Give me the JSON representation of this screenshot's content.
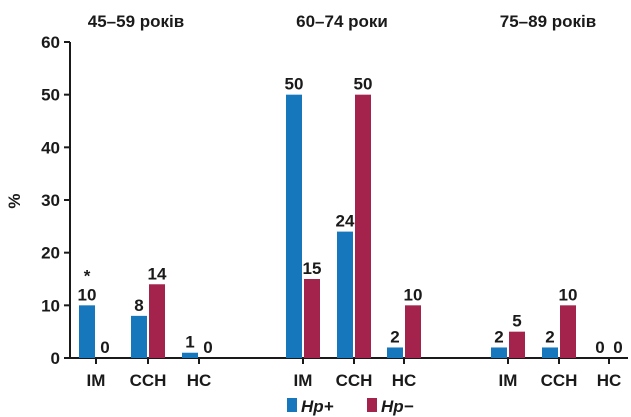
{
  "chart_data": {
    "type": "bar",
    "ylabel": "%",
    "xlabel": "",
    "ylim": [
      0,
      60
    ],
    "yticks": [
      0,
      10,
      20,
      30,
      40,
      50,
      60
    ],
    "grid": false,
    "legend_position": "bottom-center",
    "groups": [
      {
        "title": "45–59 років",
        "categories": [
          "ІМ",
          "ССН",
          "НС"
        ],
        "series": [
          {
            "values": [
              10,
              8,
              1
            ],
            "labels": [
              "10",
              "8",
              "1"
            ]
          },
          {
            "values": [
              0,
              14,
              0
            ],
            "labels": [
              "0",
              "14",
              "0"
            ]
          }
        ]
      },
      {
        "title": "60–74 роки",
        "categories": [
          "ІМ",
          "ССН",
          "НС"
        ],
        "series": [
          {
            "values": [
              50,
              24,
              2
            ],
            "labels": [
              "50",
              "24",
              "2"
            ]
          },
          {
            "values": [
              15,
              50,
              10
            ],
            "labels": [
              "15",
              "50",
              "10"
            ]
          }
        ]
      },
      {
        "title": "75–89 років",
        "categories": [
          "ІМ",
          "ССН",
          "НС"
        ],
        "series": [
          {
            "values": [
              2,
              2,
              0
            ],
            "labels": [
              "2",
              "2",
              "0"
            ]
          },
          {
            "values": [
              5,
              10,
              0
            ],
            "labels": [
              "5",
              "10",
              "0"
            ]
          }
        ]
      }
    ],
    "series": [
      {
        "name": "Hp+",
        "color": "#1677bd"
      },
      {
        "name": "Hp−",
        "color": "#a3234d"
      }
    ],
    "annotations": [
      {
        "text": "*",
        "group": 0,
        "category": 0,
        "series": 0
      }
    ]
  }
}
